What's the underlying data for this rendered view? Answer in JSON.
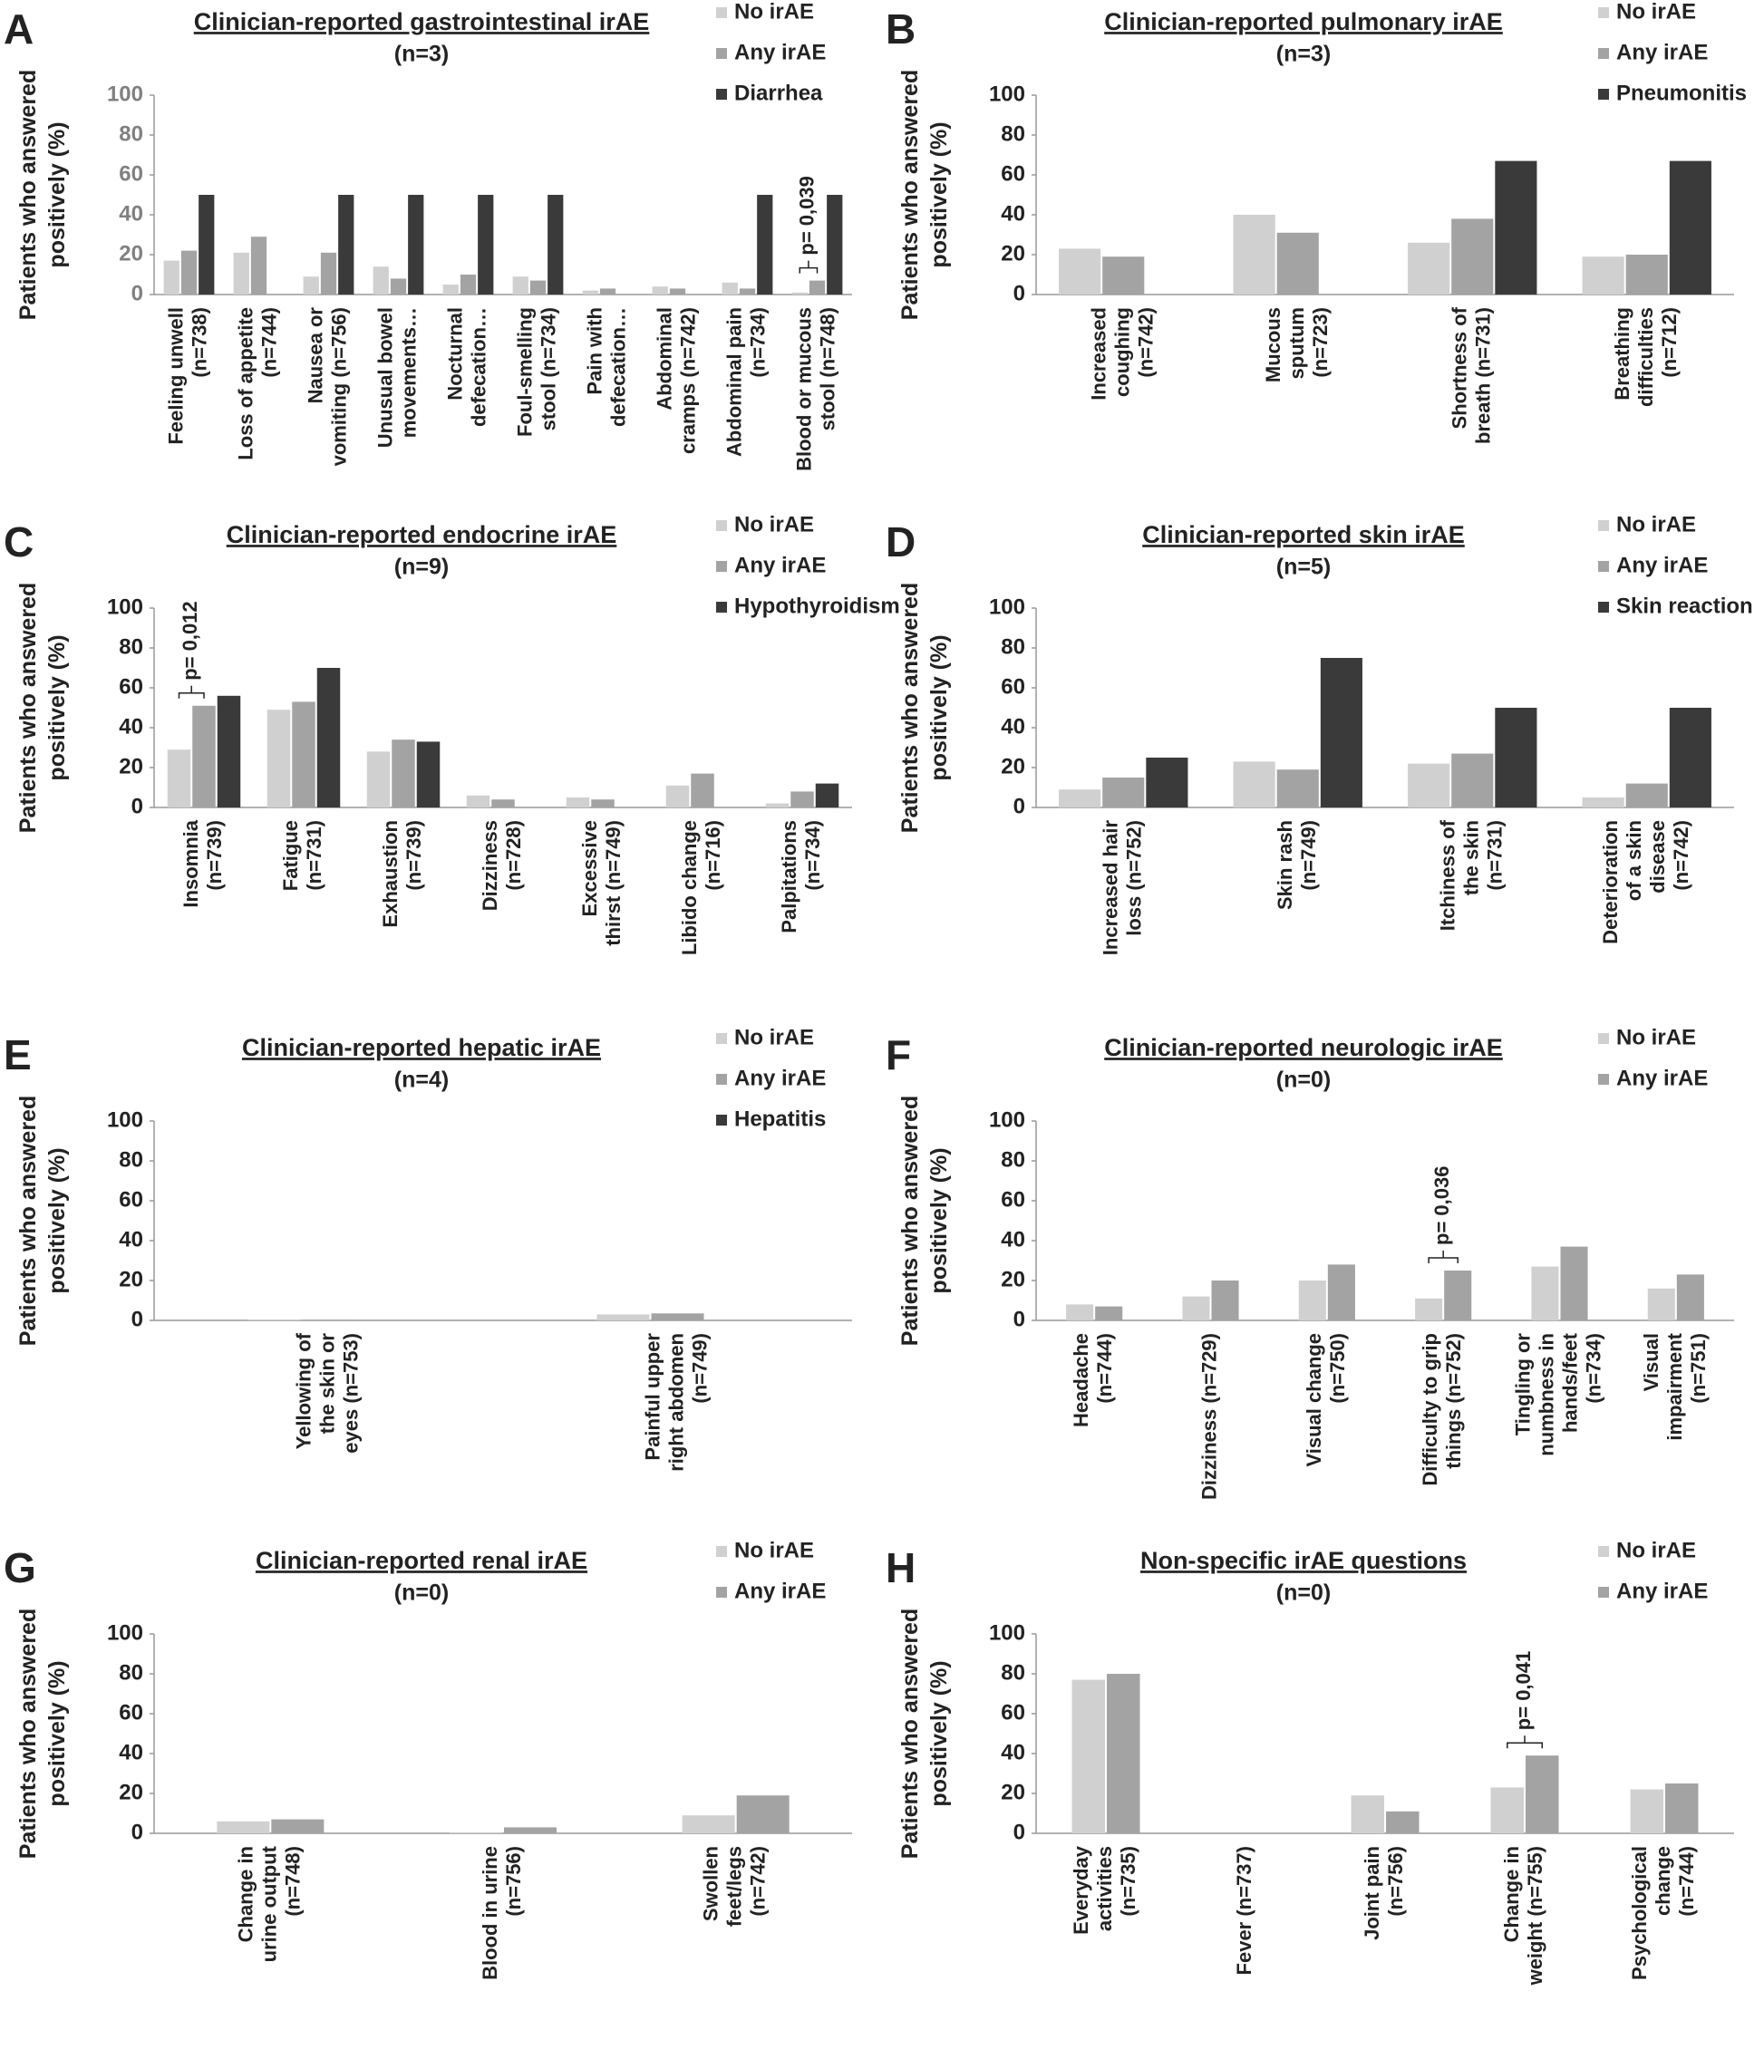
{
  "chart_data": [
    {
      "type": "bar",
      "label": "A",
      "title": "Clinician-reported gastrointestinal irAE",
      "subtitle": "(n=3)",
      "ylabel": "Patients who answered\npositively (%)",
      "tick_color": "#808080",
      "categories": [
        "Feeling unwell\n(n=738)",
        "Loss of appetite\n(n=744)",
        "Nausea or\nvomiting (n=756)",
        "Unusual bowel\nmovements…",
        "Nocturnal\ndefecation…",
        "Foul-smelling\nstool (n=734)",
        "Pain with\ndefecation…",
        "Abdominal\ncramps (n=742)",
        "Abdominal pain\n(n=734)",
        "Blood or mucous\nstool (n=748)"
      ],
      "series": [
        {
          "name": "No irAE",
          "color": "#d0d0d0",
          "values": [
            17,
            21,
            9,
            14,
            5,
            9,
            2,
            4,
            6,
            1
          ]
        },
        {
          "name": "Any irAE",
          "color": "#a3a3a3",
          "values": [
            22,
            29,
            21,
            8,
            10,
            7,
            3,
            3,
            3,
            7
          ]
        },
        {
          "name": "Diarrhea",
          "color": "#3a3a3a",
          "values": [
            50,
            0,
            50,
            50,
            50,
            50,
            0,
            0,
            50,
            50
          ]
        }
      ],
      "annotations": [
        {
          "text": "p= 0,039",
          "category": 9
        }
      ],
      "ylim": [
        0,
        100
      ],
      "yticks": [
        0,
        20,
        40,
        60,
        80,
        100
      ]
    },
    {
      "type": "bar",
      "label": "B",
      "title": "Clinician-reported pulmonary irAE",
      "subtitle": "(n=3)",
      "ylabel": "Patients who answered\npositively (%)",
      "categories": [
        "Increased\ncoughing\n(n=742)",
        "Mucous\nsputum\n(n=723)",
        "Shortness of\nbreath (n=731)",
        "Breathing\ndifficulties\n(n=712)"
      ],
      "series": [
        {
          "name": "No irAE",
          "color": "#d0d0d0",
          "values": [
            23,
            40,
            26,
            19
          ]
        },
        {
          "name": "Any irAE",
          "color": "#a3a3a3",
          "values": [
            19,
            31,
            38,
            20
          ]
        },
        {
          "name": "Pneumonitis",
          "color": "#3a3a3a",
          "values": [
            0,
            0,
            67,
            67
          ]
        }
      ],
      "annotations": [],
      "ylim": [
        0,
        100
      ],
      "yticks": [
        0,
        20,
        40,
        60,
        80,
        100
      ]
    },
    {
      "type": "bar",
      "label": "C",
      "title": "Clinician-reported endocrine irAE",
      "subtitle": "(n=9)",
      "ylabel": "Patients who answered\npositively (%)",
      "categories": [
        "Insomnia\n(n=739)",
        "Fatigue\n(n=731)",
        "Exhaustion\n(n=739)",
        "Dizziness\n(n=728)",
        "Excessive\nthirst (n=749)",
        "Libido change\n(n=716)",
        "Palpitations\n(n=734)"
      ],
      "series": [
        {
          "name": "No irAE",
          "color": "#d0d0d0",
          "values": [
            29,
            49,
            28,
            6,
            5,
            11,
            2
          ]
        },
        {
          "name": "Any irAE",
          "color": "#a3a3a3",
          "values": [
            51,
            53,
            34,
            4,
            4,
            17,
            8
          ]
        },
        {
          "name": "Hypothyroidism",
          "color": "#3a3a3a",
          "values": [
            56,
            70,
            33,
            0,
            0,
            0,
            12
          ]
        }
      ],
      "annotations": [
        {
          "text": "p= 0,012",
          "category": 0
        }
      ],
      "ylim": [
        0,
        100
      ],
      "yticks": [
        0,
        20,
        40,
        60,
        80,
        100
      ]
    },
    {
      "type": "bar",
      "label": "D",
      "title": "Clinician-reported skin irAE",
      "subtitle": "(n=5)",
      "ylabel": "Patients who answered\npositively (%)",
      "categories": [
        "Increased hair\nloss (n=752)",
        "Skin rash\n(n=749)",
        "Itchiness of\nthe skin\n(n=731)",
        "Deterioration\nof a skin\ndisease\n(n=742)"
      ],
      "series": [
        {
          "name": "No irAE",
          "color": "#d0d0d0",
          "values": [
            9,
            23,
            22,
            5
          ]
        },
        {
          "name": "Any irAE",
          "color": "#a3a3a3",
          "values": [
            15,
            19,
            27,
            12
          ]
        },
        {
          "name": "Skin reaction",
          "color": "#3a3a3a",
          "values": [
            25,
            75,
            50,
            50
          ]
        }
      ],
      "annotations": [],
      "ylim": [
        0,
        100
      ],
      "yticks": [
        0,
        20,
        40,
        60,
        80,
        100
      ]
    },
    {
      "type": "bar",
      "label": "E",
      "title": "Clinician-reported hepatic irAE",
      "subtitle": "(n=4)",
      "ylabel": "Patients who answered\npositively (%)",
      "categories": [
        "Yellowing of\nthe skin or\neyes (n=753)",
        "Painful upper\nright abdomen\n(n=749)"
      ],
      "series": [
        {
          "name": "No irAE",
          "color": "#d0d0d0",
          "values": [
            0.3,
            3
          ]
        },
        {
          "name": "Any irAE",
          "color": "#a3a3a3",
          "values": [
            0.3,
            3.5
          ]
        },
        {
          "name": "Hepatitis",
          "color": "#3a3a3a",
          "values": [
            0,
            0
          ]
        }
      ],
      "annotations": [],
      "ylim": [
        0,
        100
      ],
      "yticks": [
        0,
        20,
        40,
        60,
        80,
        100
      ]
    },
    {
      "type": "bar",
      "label": "F",
      "title": "Clinician-reported neurologic irAE",
      "subtitle": "(n=0)",
      "ylabel": "Patients who answered\npositively (%)",
      "categories": [
        "Headache\n(n=744)",
        "Dizziness (n=729)",
        "Visual change\n(n=750)",
        "Difficulty to grip\nthings (n=752)",
        "Tingling or\nnumbness in\nhands/feet\n(n=734)",
        "Visual\nimpairment\n(n=751)"
      ],
      "series": [
        {
          "name": "No irAE",
          "color": "#d0d0d0",
          "values": [
            8,
            12,
            20,
            11,
            27,
            16
          ]
        },
        {
          "name": "Any irAE",
          "color": "#a3a3a3",
          "values": [
            7,
            20,
            28,
            25,
            37,
            23
          ]
        }
      ],
      "annotations": [
        {
          "text": "p= 0,036",
          "category": 3
        }
      ],
      "ylim": [
        0,
        100
      ],
      "yticks": [
        0,
        20,
        40,
        60,
        80,
        100
      ]
    },
    {
      "type": "bar",
      "label": "G",
      "title": "Clinician-reported renal irAE",
      "subtitle": "(n=0)",
      "ylabel": "Patients who answered\npositively (%)",
      "categories": [
        "Change in\nurine output\n(n=748)",
        "Blood in urine\n(n=756)",
        "Swollen\nfeet/legs\n(n=742)"
      ],
      "series": [
        {
          "name": "No irAE",
          "color": "#d0d0d0",
          "values": [
            6,
            0.5,
            9
          ]
        },
        {
          "name": "Any irAE",
          "color": "#a3a3a3",
          "values": [
            7,
            3,
            19
          ]
        }
      ],
      "annotations": [],
      "ylim": [
        0,
        100
      ],
      "yticks": [
        0,
        20,
        40,
        60,
        80,
        100
      ]
    },
    {
      "type": "bar",
      "label": "H",
      "title": "Non-specific irAE questions",
      "subtitle": "(n=0)",
      "ylabel": "Patients who answered\npositively (%)",
      "categories": [
        "Everyday\nactivities\n(n=735)",
        "Fever (n=737)",
        "Joint pain\n(n=756)",
        "Change in\nweight (n=755)",
        "Psychological\nchange\n(n=744)"
      ],
      "series": [
        {
          "name": "No irAE",
          "color": "#d0d0d0",
          "values": [
            77,
            0,
            19,
            23,
            22
          ]
        },
        {
          "name": "Any irAE",
          "color": "#a3a3a3",
          "values": [
            80,
            0,
            11,
            39,
            25
          ]
        }
      ],
      "annotations": [
        {
          "text": "p= 0,041",
          "category": 3
        }
      ],
      "ylim": [
        0,
        100
      ],
      "yticks": [
        0,
        20,
        40,
        60,
        80,
        100
      ]
    }
  ]
}
